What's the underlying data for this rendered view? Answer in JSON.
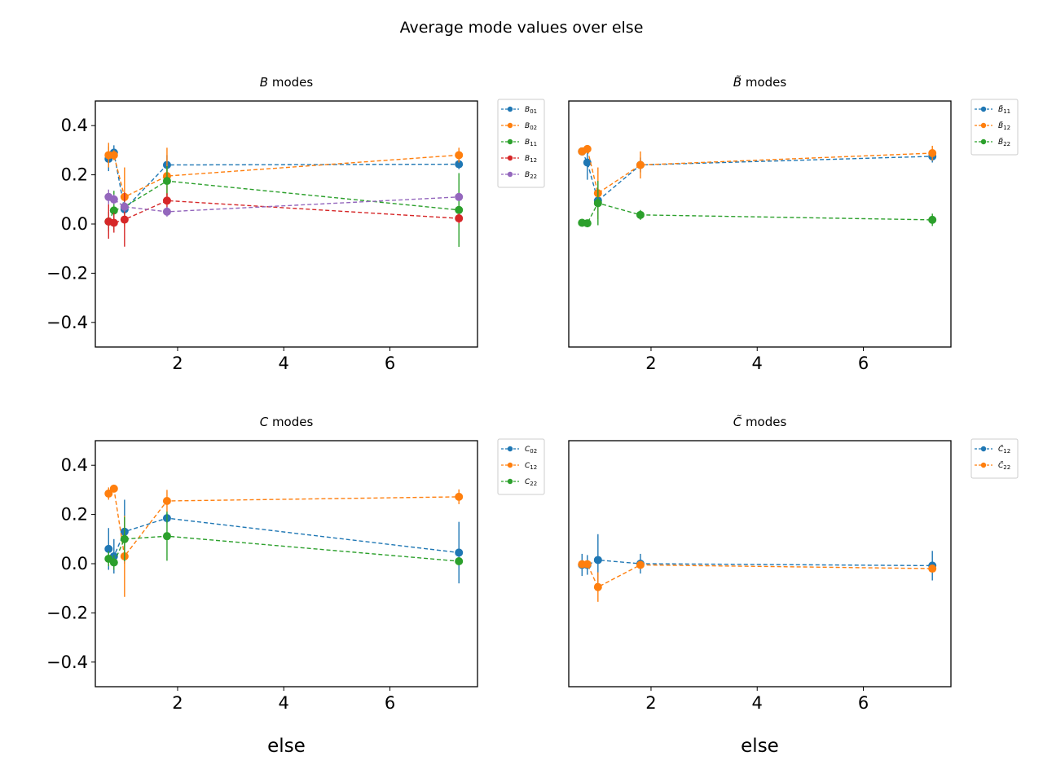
{
  "suptitle": "Average mode values over else",
  "chart_data": [
    {
      "type": "line",
      "title": "B modes",
      "title_symbol": "B",
      "title_rest": " modes",
      "xlabel": "",
      "ylabel": "",
      "xlim": [
        0.45,
        7.65
      ],
      "ylim": [
        -0.5,
        0.5
      ],
      "xticks": [
        2,
        4,
        6
      ],
      "yticks": [
        0.4,
        0.2,
        0.0,
        -0.2,
        -0.4
      ],
      "ytick_labels": [
        "0.4",
        "0.2",
        "0.0",
        "−0.2",
        "−0.4"
      ],
      "show_yticks": true,
      "legend_position": "outside-right",
      "series": [
        {
          "name": "B01",
          "legend_base": "B",
          "legend_sub": "01",
          "tilde": false,
          "color": "#1f77b4",
          "x": [
            0.7,
            0.8,
            1.0,
            1.8,
            7.3
          ],
          "y": [
            0.265,
            0.29,
            0.06,
            0.24,
            0.243
          ],
          "yerr": [
            0.05,
            0.03,
            0.03,
            0.04,
            0.02
          ]
        },
        {
          "name": "B02",
          "legend_base": "B",
          "legend_sub": "02",
          "tilde": false,
          "color": "#ff7f0e",
          "x": [
            0.7,
            0.8,
            1.0,
            1.8,
            7.3
          ],
          "y": [
            0.28,
            0.28,
            0.11,
            0.195,
            0.28
          ],
          "yerr": [
            0.05,
            0.02,
            0.12,
            0.115,
            0.03
          ]
        },
        {
          "name": "B11",
          "legend_base": "B",
          "legend_sub": "11",
          "tilde": false,
          "color": "#2ca02c",
          "x": [
            0.7,
            0.8,
            1.0,
            1.8,
            7.3
          ],
          "y": [
            0.01,
            0.055,
            0.07,
            0.175,
            0.057
          ],
          "yerr": [
            0.04,
            0.08,
            0.03,
            0.06,
            0.15
          ]
        },
        {
          "name": "B12",
          "legend_base": "B",
          "legend_sub": "12",
          "tilde": false,
          "color": "#d62728",
          "x": [
            0.7,
            0.8,
            1.0,
            1.8,
            7.3
          ],
          "y": [
            0.01,
            0.005,
            0.018,
            0.095,
            0.023
          ],
          "yerr": [
            0.07,
            0.04,
            0.11,
            0.03,
            0.02
          ]
        },
        {
          "name": "B22",
          "legend_base": "B",
          "legend_sub": "22",
          "tilde": false,
          "color": "#9467bd",
          "x": [
            0.7,
            0.8,
            1.0,
            1.8,
            7.3
          ],
          "y": [
            0.11,
            0.1,
            0.07,
            0.05,
            0.11
          ],
          "yerr": [
            0.03,
            0.02,
            0.02,
            0.02,
            0.015
          ]
        }
      ]
    },
    {
      "type": "line",
      "title": "B̃ modes",
      "title_symbol": "B̃",
      "title_rest": " modes",
      "xlabel": "",
      "ylabel": "",
      "xlim": [
        0.45,
        7.65
      ],
      "ylim": [
        -0.5,
        0.5
      ],
      "xticks": [
        2,
        4,
        6
      ],
      "yticks": [],
      "ytick_labels": [],
      "show_yticks": false,
      "legend_position": "outside-right",
      "series": [
        {
          "name": "B̃11",
          "legend_base": "B",
          "legend_sub": "11",
          "tilde": true,
          "color": "#1f77b4",
          "x": [
            0.7,
            0.8,
            1.0,
            1.8,
            7.3
          ],
          "y": [
            0.295,
            0.25,
            0.095,
            0.24,
            0.275
          ],
          "yerr": [
            0.015,
            0.07,
            0.02,
            0.03,
            0.025
          ]
        },
        {
          "name": "B̃12",
          "legend_base": "B",
          "legend_sub": "12",
          "tilde": true,
          "color": "#ff7f0e",
          "x": [
            0.7,
            0.8,
            1.0,
            1.8,
            7.3
          ],
          "y": [
            0.295,
            0.305,
            0.125,
            0.24,
            0.288
          ],
          "yerr": [
            0.015,
            0.015,
            0.105,
            0.055,
            0.03
          ]
        },
        {
          "name": "B̃22",
          "legend_base": "B",
          "legend_sub": "22",
          "tilde": true,
          "color": "#2ca02c",
          "x": [
            0.7,
            0.8,
            1.0,
            1.8,
            7.3
          ],
          "y": [
            0.005,
            0.003,
            0.085,
            0.037,
            0.017
          ],
          "yerr": [
            0.005,
            0.005,
            0.09,
            0.02,
            0.025
          ]
        }
      ]
    },
    {
      "type": "line",
      "title": "C modes",
      "title_symbol": "C",
      "title_rest": " modes",
      "xlabel": "else",
      "ylabel": "",
      "xlim": [
        0.45,
        7.65
      ],
      "ylim": [
        -0.5,
        0.5
      ],
      "xticks": [
        2,
        4,
        6
      ],
      "yticks": [
        0.4,
        0.2,
        0.0,
        -0.2,
        -0.4
      ],
      "ytick_labels": [
        "0.4",
        "0.2",
        "0.0",
        "−0.2",
        "−0.4"
      ],
      "show_yticks": true,
      "legend_position": "outside-right",
      "series": [
        {
          "name": "C02",
          "legend_base": "C",
          "legend_sub": "02",
          "tilde": false,
          "color": "#1f77b4",
          "x": [
            0.7,
            0.8,
            1.0,
            1.8,
            7.3
          ],
          "y": [
            0.06,
            0.03,
            0.13,
            0.185,
            0.045
          ],
          "yerr": [
            0.085,
            0.07,
            0.13,
            0.02,
            0.125
          ]
        },
        {
          "name": "C12",
          "legend_base": "C",
          "legend_sub": "12",
          "tilde": false,
          "color": "#ff7f0e",
          "x": [
            0.7,
            0.8,
            1.0,
            1.8,
            7.3
          ],
          "y": [
            0.285,
            0.305,
            0.03,
            0.255,
            0.272
          ],
          "yerr": [
            0.025,
            0.01,
            0.165,
            0.045,
            0.03
          ]
        },
        {
          "name": "C22",
          "legend_base": "C",
          "legend_sub": "22",
          "tilde": false,
          "color": "#2ca02c",
          "x": [
            0.7,
            0.8,
            1.0,
            1.8,
            7.3
          ],
          "y": [
            0.02,
            0.005,
            0.1,
            0.112,
            0.01
          ],
          "yerr": [
            0.03,
            0.03,
            0.09,
            0.1,
            0.01
          ]
        }
      ]
    },
    {
      "type": "line",
      "title": "C̃ modes",
      "title_symbol": "C̃",
      "title_rest": " modes",
      "xlabel": "else",
      "ylabel": "",
      "xlim": [
        0.45,
        7.65
      ],
      "ylim": [
        -0.5,
        0.5
      ],
      "xticks": [
        2,
        4,
        6
      ],
      "yticks": [],
      "ytick_labels": [],
      "show_yticks": false,
      "legend_position": "outside-right",
      "series": [
        {
          "name": "C̃12",
          "legend_base": "C",
          "legend_sub": "12",
          "tilde": true,
          "color": "#1f77b4",
          "x": [
            0.7,
            0.8,
            1.0,
            1.8,
            7.3
          ],
          "y": [
            -0.005,
            -0.005,
            0.015,
            0.0,
            -0.008
          ],
          "yerr": [
            0.045,
            0.04,
            0.105,
            0.04,
            0.06
          ]
        },
        {
          "name": "C̃22",
          "legend_base": "C",
          "legend_sub": "22",
          "tilde": true,
          "color": "#ff7f0e",
          "x": [
            0.7,
            0.8,
            1.0,
            1.8,
            7.3
          ],
          "y": [
            -0.002,
            -0.002,
            -0.095,
            -0.005,
            -0.02
          ],
          "yerr": [
            0.01,
            0.01,
            0.06,
            0.01,
            0.01
          ]
        }
      ]
    }
  ]
}
